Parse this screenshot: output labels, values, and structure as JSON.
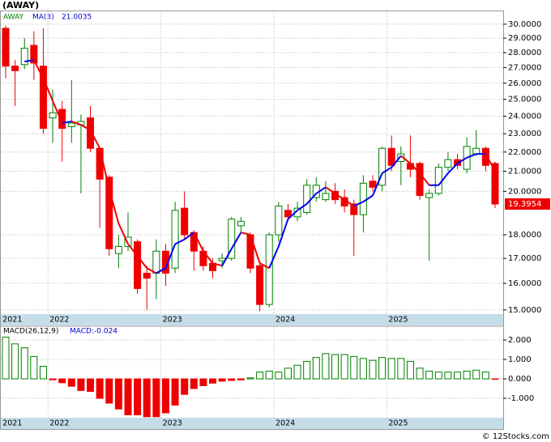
{
  "chart_data": [
    {
      "type": "candlestick",
      "title": "(AWAY)",
      "series_name": "AWAY",
      "categories": [
        "2021",
        null,
        null,
        null,
        null,
        "2022",
        null,
        null,
        null,
        null,
        null,
        null,
        null,
        null,
        null,
        null,
        null,
        "2023",
        null,
        null,
        null,
        null,
        null,
        null,
        null,
        null,
        null,
        null,
        null,
        "2024",
        null,
        null,
        null,
        null,
        null,
        null,
        null,
        null,
        null,
        null,
        null,
        "2025",
        null,
        null,
        null,
        null,
        null,
        null,
        null,
        null,
        null,
        null,
        null
      ],
      "open": [
        29.7,
        27.1,
        27.2,
        28.5,
        27.1,
        23.9,
        24.4,
        23.4,
        23.5,
        23.9,
        22.2,
        20.7,
        17.2,
        17.5,
        17.7,
        16.4,
        16.4,
        17.3,
        16.6,
        19.2,
        18.1,
        17.3,
        16.8,
        16.9,
        17.0,
        18.4,
        18.0,
        16.7,
        15.2,
        18.0,
        19.1,
        18.8,
        19.0,
        19.7,
        19.6,
        20.0,
        19.7,
        19.4,
        18.9,
        20.5,
        20.3,
        22.2,
        21.5,
        21.4,
        21.4,
        19.7,
        19.9,
        21.2,
        21.6,
        21.1,
        21.9,
        22.2,
        21.4
      ],
      "high": [
        29.9,
        27.5,
        29.0,
        29.5,
        29.7,
        25.6,
        24.9,
        26.2,
        24.1,
        24.6,
        22.2,
        20.8,
        18.0,
        19.0,
        17.8,
        16.7,
        17.8,
        17.6,
        19.5,
        20.0,
        18.2,
        17.5,
        17.0,
        17.2,
        18.8,
        18.8,
        18.1,
        16.9,
        18.1,
        19.5,
        19.4,
        19.5,
        20.6,
        20.7,
        20.5,
        20.4,
        20.1,
        19.6,
        20.8,
        20.8,
        22.3,
        22.9,
        22.3,
        22.9,
        21.5,
        20.1,
        21.4,
        22.0,
        21.9,
        22.8,
        23.2,
        22.3,
        21.5
      ],
      "low": [
        26.3,
        24.6,
        26.9,
        26.2,
        23.0,
        22.5,
        21.5,
        22.5,
        19.9,
        22.0,
        18.3,
        17.1,
        16.6,
        17.3,
        15.6,
        15.0,
        15.4,
        15.9,
        16.4,
        17.8,
        16.5,
        16.5,
        16.2,
        16.6,
        16.9,
        18.1,
        16.4,
        14.95,
        15.1,
        17.7,
        18.6,
        18.6,
        18.9,
        19.5,
        19.5,
        19.4,
        19.0,
        17.1,
        18.1,
        20.0,
        20.0,
        21.0,
        20.3,
        20.7,
        19.6,
        16.9,
        19.8,
        21.0,
        21.1,
        20.9,
        21.8,
        21.0,
        19.2
      ],
      "close": [
        27.1,
        26.8,
        28.3,
        27.3,
        23.3,
        24.2,
        23.3,
        23.6,
        23.7,
        22.2,
        20.6,
        17.4,
        17.5,
        17.9,
        15.8,
        16.2,
        17.3,
        16.4,
        19.1,
        18.0,
        17.3,
        16.7,
        16.5,
        17.0,
        18.7,
        18.6,
        16.6,
        15.2,
        18.0,
        19.3,
        18.8,
        19.2,
        20.3,
        20.3,
        19.9,
        19.6,
        19.3,
        18.9,
        20.4,
        20.2,
        22.2,
        21.3,
        21.9,
        21.1,
        19.8,
        19.9,
        21.2,
        21.6,
        21.3,
        22.3,
        22.2,
        21.3,
        19.3954
      ],
      "up_color": "#008000",
      "down_color": "#ee0000",
      "ma": {
        "name": "MA(3)",
        "up_color": "#0000ee",
        "down_color": "#ee0000",
        "values": [
          null,
          null,
          27.4,
          27.5,
          26.3,
          24.9,
          23.6,
          23.7,
          23.5,
          23.2,
          22.2,
          20.1,
          18.5,
          17.6,
          17.1,
          16.6,
          16.4,
          16.6,
          17.6,
          17.8,
          18.1,
          17.3,
          16.8,
          16.7,
          17.4,
          18.1,
          18.0,
          16.8,
          16.6,
          17.5,
          18.7,
          19.1,
          19.4,
          19.9,
          20.2,
          19.9,
          19.6,
          19.3,
          19.5,
          19.8,
          20.9,
          21.2,
          21.8,
          21.4,
          20.9,
          20.3,
          20.3,
          20.9,
          21.4,
          21.7,
          21.9,
          21.9,
          21.0035
        ]
      },
      "log_scale": true,
      "grid": true,
      "ylim": [
        14.85,
        30.95
      ],
      "yticks": [
        {
          "value": 15,
          "label": "15.0000"
        },
        {
          "value": 16,
          "label": "16.0000"
        },
        {
          "value": 17,
          "label": "17.0000"
        },
        {
          "value": 18,
          "label": "18.0000"
        },
        {
          "value": 20,
          "label": "20.0000"
        },
        {
          "value": 21,
          "label": "21.0000"
        },
        {
          "value": 22,
          "label": "22.0000"
        },
        {
          "value": 23,
          "label": "23.0000"
        },
        {
          "value": 24,
          "label": "24.0000"
        },
        {
          "value": 25,
          "label": "25.0000"
        },
        {
          "value": 26,
          "label": "26.0000"
        },
        {
          "value": 27,
          "label": "27.0000"
        },
        {
          "value": 28,
          "label": "28.0000"
        },
        {
          "value": 29,
          "label": "29.0000"
        },
        {
          "value": 30,
          "label": "30.0000"
        }
      ]
    },
    {
      "type": "histogram-bars",
      "title": "MACD(26,12,9)",
      "annotation": "MACD:-0.024",
      "categories": [
        "2021",
        null,
        null,
        null,
        null,
        "2022",
        null,
        null,
        null,
        null,
        null,
        null,
        null,
        null,
        null,
        null,
        null,
        "2023",
        null,
        null,
        null,
        null,
        null,
        null,
        null,
        null,
        null,
        null,
        null,
        "2024",
        null,
        null,
        null,
        null,
        null,
        null,
        null,
        null,
        null,
        null,
        null,
        "2025",
        null,
        null,
        null,
        null,
        null,
        null,
        null,
        null,
        null,
        null,
        null
      ],
      "values": [
        2.15,
        1.8,
        1.6,
        1.15,
        0.65,
        -0.05,
        -0.2,
        -0.38,
        -0.6,
        -0.65,
        -1.0,
        -1.25,
        -1.55,
        -1.85,
        -1.85,
        -1.95,
        -1.95,
        -1.75,
        -1.35,
        -0.8,
        -0.5,
        -0.35,
        -0.22,
        -0.12,
        -0.08,
        -0.05,
        0.05,
        0.35,
        0.4,
        0.35,
        0.55,
        0.7,
        0.9,
        1.1,
        1.3,
        1.25,
        1.25,
        1.15,
        1.05,
        0.95,
        1.1,
        1.05,
        1.05,
        0.9,
        0.55,
        0.4,
        0.35,
        0.35,
        0.35,
        0.4,
        0.45,
        0.35,
        -0.024
      ],
      "up_color": "#008000",
      "down_color": "#ee0000",
      "grid": true,
      "ylim": [
        -2.0,
        2.667
      ],
      "yticks": [
        {
          "value": -1,
          "label": "-1.000"
        },
        {
          "value": 0,
          "label": "0.000"
        },
        {
          "value": 1,
          "label": "1.000"
        },
        {
          "value": 2,
          "label": "2.000"
        }
      ]
    }
  ],
  "footer": "© 12Stocks.com"
}
